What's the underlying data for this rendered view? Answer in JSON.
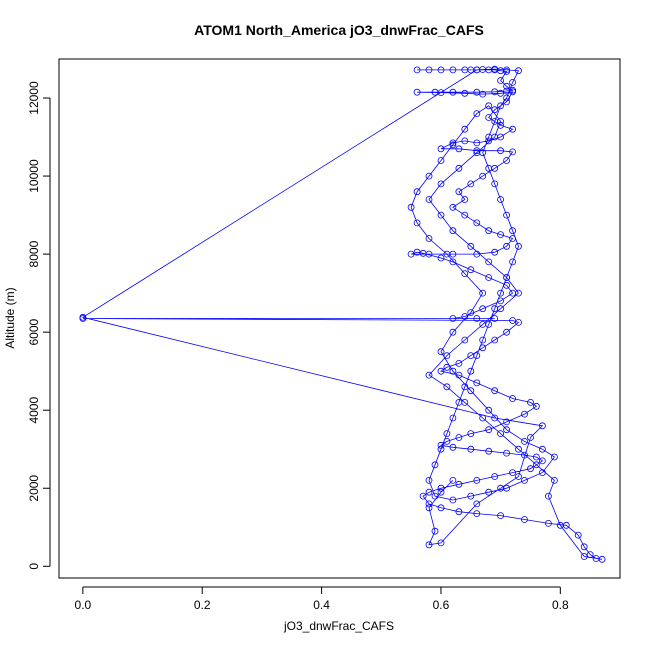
{
  "chart_data": {
    "type": "scatter",
    "title": "ATOM1 North_America jO3_dnwFrac_CAFS",
    "xlabel": "jO3_dnwFrac_CAFS",
    "ylabel": "Altitude (m)",
    "xlim": [
      -0.04,
      0.9
    ],
    "ylim": [
      -300,
      13000
    ],
    "xticks": [
      0.0,
      0.2,
      0.4,
      0.6,
      0.8
    ],
    "xtick_labels": [
      "0.0",
      "0.2",
      "0.4",
      "0.6",
      "0.8"
    ],
    "yticks": [
      0,
      2000,
      4000,
      6000,
      8000,
      10000,
      12000
    ],
    "ytick_labels": [
      "0",
      "2000",
      "4000",
      "6000",
      "8000",
      "10000",
      "12000"
    ],
    "grid": false,
    "legend": "none",
    "series": [
      {
        "color": "#0000ff",
        "style": "lines+points",
        "points": [
          [
            0.56,
            12720
          ],
          [
            0.58,
            12720
          ],
          [
            0.6,
            12720
          ],
          [
            0.62,
            12720
          ],
          [
            0.64,
            12720
          ],
          [
            0.65,
            12720
          ],
          [
            0.66,
            12720
          ],
          [
            0.68,
            12720
          ],
          [
            0.69,
            12720
          ],
          [
            0.7,
            12700
          ],
          [
            0.71,
            12680
          ],
          [
            0.7,
            12450
          ],
          [
            0.71,
            12300
          ],
          [
            0.72,
            12200
          ],
          [
            0.71,
            12180
          ],
          [
            0.69,
            12160
          ],
          [
            0.66,
            12150
          ],
          [
            0.62,
            12150
          ],
          [
            0.59,
            12150
          ],
          [
            0.56,
            12150
          ],
          [
            0.6,
            12140
          ],
          [
            0.64,
            12120
          ],
          [
            0.67,
            12100
          ],
          [
            0.7,
            12120
          ],
          [
            0.72,
            12160
          ],
          [
            0.71,
            11900
          ],
          [
            0.69,
            11700
          ],
          [
            0.68,
            11500
          ],
          [
            0.7,
            11300
          ],
          [
            0.72,
            11200
          ],
          [
            0.7,
            11000
          ],
          [
            0.68,
            10900
          ],
          [
            0.66,
            10850
          ],
          [
            0.64,
            10900
          ],
          [
            0.62,
            10850
          ],
          [
            0.6,
            10700
          ],
          [
            0.63,
            10700
          ],
          [
            0.66,
            10650
          ],
          [
            0.7,
            10650
          ],
          [
            0.72,
            10620
          ],
          [
            0.71,
            10400
          ],
          [
            0.69,
            10200
          ],
          [
            0.67,
            10000
          ],
          [
            0.65,
            9800
          ],
          [
            0.63,
            9600
          ],
          [
            0.64,
            9400
          ],
          [
            0.62,
            9200
          ],
          [
            0.64,
            9000
          ],
          [
            0.66,
            8800
          ],
          [
            0.68,
            8600
          ],
          [
            0.7,
            8500
          ],
          [
            0.72,
            8400
          ],
          [
            0.71,
            8200
          ],
          [
            0.69,
            8050
          ],
          [
            0.66,
            8000
          ],
          [
            0.62,
            8000
          ],
          [
            0.58,
            8000
          ],
          [
            0.55,
            8000
          ],
          [
            0.56,
            8050
          ],
          [
            0.57,
            8020
          ],
          [
            0.6,
            7900
          ],
          [
            0.62,
            7800
          ],
          [
            0.65,
            7600
          ],
          [
            0.68,
            7400
          ],
          [
            0.71,
            7200
          ],
          [
            0.72,
            7000
          ],
          [
            0.7,
            6800
          ],
          [
            0.67,
            6600
          ],
          [
            0.64,
            6400
          ],
          [
            0.62,
            6350
          ],
          [
            0.66,
            6350
          ],
          [
            0.69,
            6350
          ],
          [
            0.0,
            6350
          ],
          [
            0.72,
            6300
          ],
          [
            0.73,
            6250
          ],
          [
            0.71,
            6000
          ],
          [
            0.69,
            5800
          ],
          [
            0.67,
            5600
          ],
          [
            0.65,
            5400
          ],
          [
            0.63,
            5200
          ],
          [
            0.61,
            5100
          ],
          [
            0.6,
            5000
          ],
          [
            0.63,
            4900
          ],
          [
            0.66,
            4700
          ],
          [
            0.69,
            4500
          ],
          [
            0.72,
            4300
          ],
          [
            0.75,
            4200
          ],
          [
            0.76,
            4100
          ],
          [
            0.74,
            3900
          ],
          [
            0.71,
            3700
          ],
          [
            0.68,
            3500
          ],
          [
            0.65,
            3400
          ],
          [
            0.63,
            3300
          ],
          [
            0.61,
            3200
          ],
          [
            0.6,
            3100
          ],
          [
            0.62,
            3050
          ],
          [
            0.65,
            3000
          ],
          [
            0.68,
            2950
          ],
          [
            0.71,
            2900
          ],
          [
            0.74,
            2850
          ],
          [
            0.76,
            2800
          ],
          [
            0.77,
            2700
          ],
          [
            0.75,
            2500
          ],
          [
            0.72,
            2400
          ],
          [
            0.69,
            2300
          ],
          [
            0.66,
            2200
          ],
          [
            0.63,
            2100
          ],
          [
            0.6,
            2000
          ],
          [
            0.58,
            1900
          ],
          [
            0.57,
            1800
          ],
          [
            0.58,
            1600
          ],
          [
            0.6,
            1500
          ],
          [
            0.63,
            1400
          ],
          [
            0.66,
            1350
          ],
          [
            0.7,
            1300
          ],
          [
            0.74,
            1200
          ],
          [
            0.78,
            1100
          ],
          [
            0.81,
            1050
          ],
          [
            0.83,
            800
          ],
          [
            0.84,
            500
          ],
          [
            0.85,
            300
          ],
          [
            0.86,
            200
          ],
          [
            0.87,
            180
          ],
          [
            0.84,
            250
          ],
          [
            0.8,
            1050
          ],
          [
            0.78,
            1800
          ],
          [
            0.79,
            2200
          ],
          [
            0.76,
            2600
          ],
          [
            0.73,
            3000
          ],
          [
            0.7,
            3400
          ],
          [
            0.67,
            3800
          ],
          [
            0.64,
            4200
          ],
          [
            0.61,
            4600
          ],
          [
            0.58,
            4900
          ],
          [
            0.61,
            5400
          ],
          [
            0.64,
            5800
          ],
          [
            0.67,
            6200
          ],
          [
            0.7,
            6600
          ],
          [
            0.73,
            7000
          ],
          [
            0.71,
            7400
          ],
          [
            0.68,
            7800
          ],
          [
            0.65,
            8200
          ],
          [
            0.62,
            8600
          ],
          [
            0.6,
            9000
          ],
          [
            0.58,
            9400
          ],
          [
            0.6,
            9800
          ],
          [
            0.63,
            10200
          ],
          [
            0.66,
            10600
          ],
          [
            0.69,
            11000
          ],
          [
            0.7,
            11400
          ],
          [
            0.68,
            11800
          ],
          [
            0.66,
            11600
          ],
          [
            0.64,
            11200
          ],
          [
            0.62,
            10800
          ],
          [
            0.6,
            10400
          ],
          [
            0.58,
            10000
          ],
          [
            0.56,
            9600
          ],
          [
            0.55,
            9200
          ],
          [
            0.56,
            8800
          ],
          [
            0.58,
            8400
          ],
          [
            0.61,
            8000
          ],
          [
            0.64,
            7500
          ],
          [
            0.67,
            7000
          ],
          [
            0.65,
            6500
          ],
          [
            0.62,
            6000
          ],
          [
            0.6,
            5500
          ],
          [
            0.62,
            5000
          ],
          [
            0.65,
            4500
          ],
          [
            0.68,
            4000
          ],
          [
            0.71,
            3500
          ],
          [
            0.74,
            3200
          ],
          [
            0.77,
            3000
          ],
          [
            0.79,
            2800
          ],
          [
            0.77,
            2400
          ],
          [
            0.74,
            2200
          ],
          [
            0.71,
            2000
          ],
          [
            0.68,
            1900
          ],
          [
            0.65,
            1800
          ],
          [
            0.62,
            1700
          ],
          [
            0.59,
            1800
          ],
          [
            0.58,
            2200
          ],
          [
            0.59,
            2600
          ],
          [
            0.6,
            3000
          ],
          [
            0.61,
            3400
          ],
          [
            0.62,
            3800
          ],
          [
            0.63,
            4200
          ],
          [
            0.64,
            4600
          ],
          [
            0.65,
            5000
          ],
          [
            0.66,
            5400
          ],
          [
            0.67,
            5800
          ],
          [
            0.68,
            6200
          ],
          [
            0.69,
            6600
          ],
          [
            0.7,
            7000
          ],
          [
            0.71,
            7400
          ],
          [
            0.72,
            7800
          ],
          [
            0.73,
            8200
          ],
          [
            0.72,
            8600
          ],
          [
            0.71,
            9000
          ],
          [
            0.7,
            9400
          ],
          [
            0.69,
            9800
          ],
          [
            0.68,
            10200
          ],
          [
            0.67,
            10600
          ],
          [
            0.68,
            11000
          ],
          [
            0.69,
            11400
          ],
          [
            0.7,
            11800
          ],
          [
            0.71,
            12000
          ],
          [
            0.72,
            12400
          ],
          [
            0.73,
            12700
          ],
          [
            0.71,
            12720
          ],
          [
            0.69,
            12740
          ],
          [
            0.67,
            12730
          ],
          [
            0.66,
            12720
          ],
          [
            0.0,
            6380
          ],
          [
            0.69,
            3800
          ],
          [
            0.77,
            3600
          ],
          [
            0.75,
            3300
          ],
          [
            0.73,
            2300
          ],
          [
            0.7,
            2000
          ],
          [
            0.66,
            1600
          ],
          [
            0.6,
            600
          ],
          [
            0.58,
            550
          ],
          [
            0.59,
            900
          ],
          [
            0.58,
            1500
          ],
          [
            0.6,
            1900
          ],
          [
            0.62,
            2200
          ]
        ]
      }
    ]
  }
}
